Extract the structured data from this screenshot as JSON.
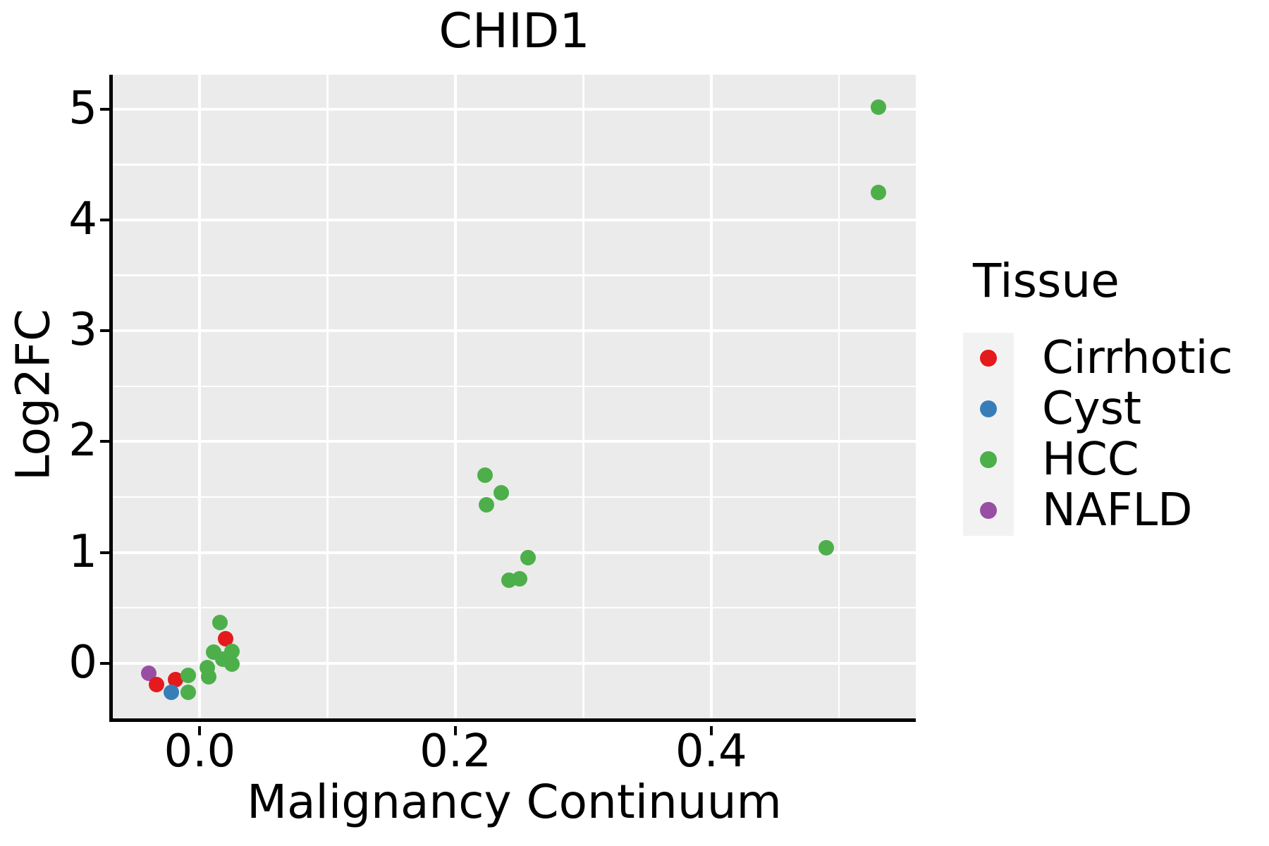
{
  "title": "CHID1",
  "axes": {
    "x": {
      "label": "Malignancy Continuum",
      "major_ticks": [
        {
          "v": 0.0,
          "label": "0.0"
        },
        {
          "v": 0.2,
          "label": "0.2"
        },
        {
          "v": 0.4,
          "label": "0.4"
        }
      ],
      "minor_ticks": [
        0.1,
        0.3,
        0.5
      ]
    },
    "y": {
      "label": "Log2FC",
      "major_ticks": [
        {
          "v": 0,
          "label": "0"
        },
        {
          "v": 1,
          "label": "1"
        },
        {
          "v": 2,
          "label": "2"
        },
        {
          "v": 3,
          "label": "3"
        },
        {
          "v": 4,
          "label": "4"
        },
        {
          "v": 5,
          "label": "5"
        }
      ],
      "minor_ticks": [
        0.5,
        1.5,
        2.5,
        3.5,
        4.5
      ]
    }
  },
  "legend": {
    "title": "Tissue",
    "entries": [
      {
        "label": "Cirrhotic",
        "color": "#E41A1C"
      },
      {
        "label": "Cyst",
        "color": "#377EB8"
      },
      {
        "label": "HCC",
        "color": "#4DAF4A"
      },
      {
        "label": "NAFLD",
        "color": "#984EA3"
      }
    ]
  },
  "colors": {
    "panel_background": "#EBEBEB",
    "gridline": "#FFFFFF",
    "axis": "#000000",
    "legend_key_background": "#F2F2F2",
    "cirrhotic": "#E41A1C",
    "cyst": "#377EB8",
    "hcc": "#4DAF4A",
    "nafld": "#984EA3"
  },
  "chart_data": {
    "type": "scatter",
    "title": "CHID1",
    "xlabel": "Malignancy Continuum",
    "ylabel": "Log2FC",
    "xlim": [
      -0.068,
      0.56
    ],
    "ylim": [
      -0.51,
      5.31
    ],
    "grid": "on",
    "legend_position": "right",
    "series": [
      {
        "name": "NAFLD",
        "color": "#984EA3",
        "points": [
          [
            -0.04,
            -0.09
          ]
        ]
      },
      {
        "name": "Cirrhotic",
        "color": "#E41A1C",
        "points": [
          [
            -0.034,
            -0.19
          ],
          [
            -0.019,
            -0.15
          ],
          [
            0.02,
            0.22
          ]
        ]
      },
      {
        "name": "Cyst",
        "color": "#377EB8",
        "points": [
          [
            -0.022,
            -0.26
          ]
        ]
      },
      {
        "name": "HCC",
        "color": "#4DAF4A",
        "points": [
          [
            -0.009,
            -0.11
          ],
          [
            -0.009,
            -0.26
          ],
          [
            0.006,
            -0.04
          ],
          [
            0.007,
            -0.12
          ],
          [
            0.011,
            0.1
          ],
          [
            0.016,
            0.37
          ],
          [
            0.018,
            0.04
          ],
          [
            0.025,
            0.11
          ],
          [
            0.025,
            -0.01
          ],
          [
            0.223,
            1.7
          ],
          [
            0.224,
            1.43
          ],
          [
            0.236,
            1.54
          ],
          [
            0.242,
            0.75
          ],
          [
            0.25,
            0.76
          ],
          [
            0.257,
            0.95
          ],
          [
            0.49,
            1.04
          ],
          [
            0.531,
            5.02
          ],
          [
            0.531,
            4.25
          ]
        ]
      }
    ]
  }
}
